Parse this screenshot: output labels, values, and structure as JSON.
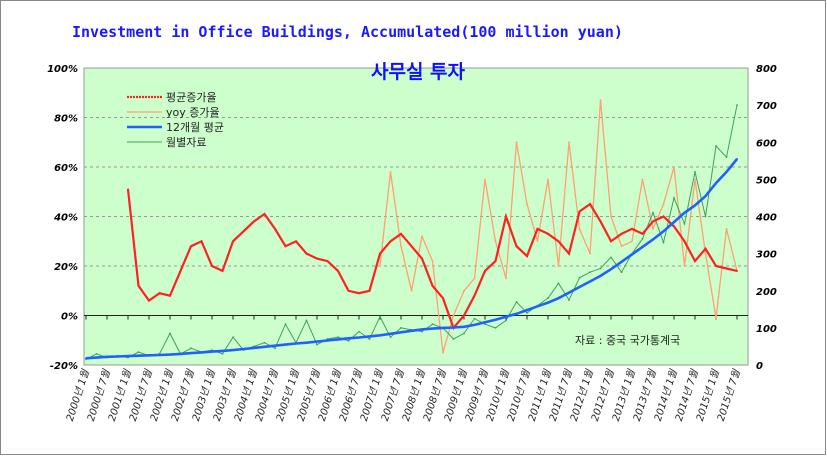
{
  "chart_data": {
    "type": "line",
    "title": "Investment in Office Buildings, Accumulated(100 million yuan)",
    "subtitle": "사무실 투자",
    "source_note": "자료 : 중국 국가통계국",
    "left_axis": {
      "ylim": [
        -20,
        100
      ],
      "ticks": [
        "-20%",
        "0%",
        "20%",
        "40%",
        "60%",
        "80%",
        "100%"
      ]
    },
    "right_axis": {
      "ylim": [
        0,
        800
      ],
      "ticks": [
        "0",
        "100",
        "200",
        "300",
        "400",
        "500",
        "600",
        "700",
        "800"
      ]
    },
    "x_resolution": "quarterly, starting 2000-01",
    "x_tick_labels": [
      "2000년 1월",
      "2000년 7월",
      "2001년 1월",
      "2001년 7월",
      "2002년 1월",
      "2002년 7월",
      "2003년 1월",
      "2003년 7월",
      "2004년 1월",
      "2004년 7월",
      "2005년 1월",
      "2005년 7월",
      "2006년 1월",
      "2006년 7월",
      "2007년 1월",
      "2007년 7월",
      "2008년 1월",
      "2008년 7월",
      "2009년 1월",
      "2009년 7월",
      "2010년 1월",
      "2010년 7월",
      "2011년 1월",
      "2011년 7월",
      "2012년 1월",
      "2012년 7월",
      "2013년 1월",
      "2013년 7월",
      "2014년 1월",
      "2014년 7월",
      "2015년 1월",
      "2015년 7월"
    ],
    "grid": true,
    "legend_position": "top-left",
    "series": [
      {
        "name": "평균증가율",
        "axis": "left",
        "color": "#ff2020",
        "values": [
          null,
          null,
          null,
          null,
          51,
          12,
          6,
          9,
          8,
          18,
          28,
          30,
          20,
          18,
          30,
          34,
          38,
          41,
          35,
          28,
          30,
          25,
          23,
          22,
          18,
          10,
          9,
          10,
          25,
          30,
          33,
          28,
          23,
          12,
          7,
          -5,
          0,
          8,
          18,
          22,
          40,
          28,
          24,
          35,
          33,
          30,
          25,
          42,
          45,
          38,
          30,
          33,
          35,
          33,
          38,
          40,
          36,
          30,
          22,
          27,
          20,
          19,
          18
        ]
      },
      {
        "name": "yoy 증가율",
        "axis": "left",
        "color": "#ffa070",
        "values": [
          null,
          null,
          null,
          null,
          null,
          null,
          null,
          null,
          null,
          null,
          null,
          null,
          null,
          null,
          null,
          null,
          null,
          null,
          null,
          null,
          null,
          null,
          null,
          null,
          null,
          null,
          null,
          null,
          20,
          58,
          28,
          10,
          32,
          22,
          -15,
          0,
          10,
          15,
          55,
          30,
          15,
          70,
          45,
          30,
          55,
          20,
          70,
          35,
          25,
          87,
          40,
          28,
          30,
          55,
          35,
          45,
          60,
          20,
          55,
          25,
          -1,
          35,
          18
        ]
      },
      {
        "name": "12개월 평균",
        "axis": "right",
        "color": "#2060ff",
        "values": [
          18,
          20,
          22,
          23,
          24,
          25,
          26,
          27,
          28,
          30,
          32,
          34,
          36,
          38,
          40,
          43,
          46,
          49,
          52,
          55,
          58,
          60,
          63,
          66,
          69,
          72,
          74,
          77,
          80,
          84,
          88,
          92,
          96,
          98,
          100,
          101,
          103,
          108,
          115,
          122,
          130,
          138,
          148,
          158,
          168,
          180,
          195,
          210,
          225,
          240,
          258,
          278,
          298,
          318,
          338,
          360,
          385,
          410,
          430,
          455,
          490,
          520,
          555
        ]
      },
      {
        "name": "월별자료",
        "axis": "right",
        "color": "#40a060",
        "values": [
          15,
          30,
          20,
          25,
          20,
          35,
          25,
          30,
          85,
          30,
          45,
          35,
          40,
          30,
          75,
          40,
          50,
          60,
          45,
          110,
          60,
          120,
          55,
          70,
          75,
          65,
          90,
          70,
          130,
          75,
          100,
          95,
          90,
          110,
          100,
          70,
          85,
          125,
          110,
          100,
          120,
          170,
          140,
          160,
          180,
          220,
          175,
          235,
          250,
          260,
          290,
          250,
          300,
          340,
          410,
          330,
          450,
          380,
          520,
          400,
          590,
          560,
          700
        ]
      }
    ]
  }
}
